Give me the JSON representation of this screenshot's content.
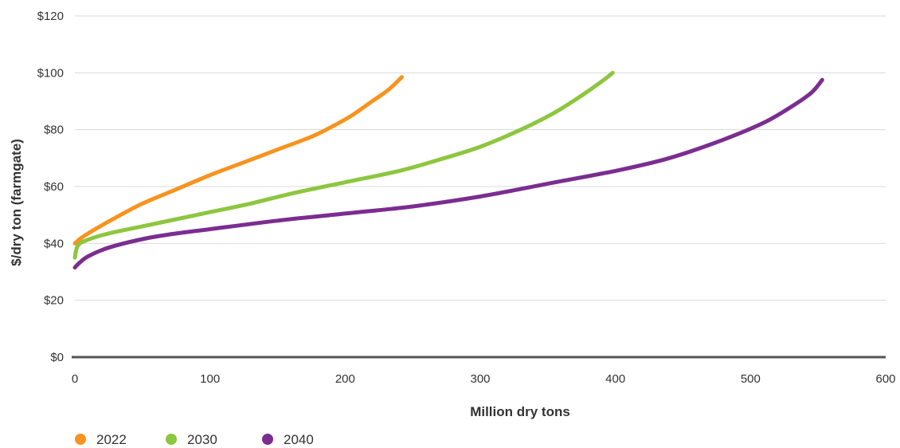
{
  "chart_data": {
    "type": "line",
    "xlabel": "Million dry tons",
    "ylabel": "$/dry ton (farmgate)",
    "xlim": [
      0,
      600
    ],
    "ylim": [
      0,
      120
    ],
    "x_ticks": [
      0,
      100,
      200,
      300,
      400,
      500,
      600
    ],
    "x_tick_labels": [
      "0",
      "100",
      "200",
      "300",
      "400",
      "500",
      "600"
    ],
    "y_ticks": [
      0,
      20,
      40,
      60,
      80,
      100,
      120
    ],
    "y_tick_labels": [
      "$0",
      "$20",
      "$40",
      "$60",
      "$80",
      "$100",
      "$120"
    ],
    "grid": "horizontal",
    "legend_position": "bottom-left",
    "series": [
      {
        "name": "2022",
        "color": "#F7931E",
        "points": [
          [
            0,
            40
          ],
          [
            5,
            42
          ],
          [
            15,
            45
          ],
          [
            30,
            49
          ],
          [
            50,
            54
          ],
          [
            75,
            59
          ],
          [
            100,
            64
          ],
          [
            125,
            68.5
          ],
          [
            150,
            73
          ],
          [
            175,
            77.5
          ],
          [
            190,
            81
          ],
          [
            205,
            85
          ],
          [
            220,
            90
          ],
          [
            232,
            94
          ],
          [
            242,
            98.5
          ]
        ]
      },
      {
        "name": "2030",
        "color": "#8DC63F",
        "points": [
          [
            0,
            35
          ],
          [
            2,
            39
          ],
          [
            8,
            41
          ],
          [
            25,
            43.5
          ],
          [
            50,
            46
          ],
          [
            75,
            48.5
          ],
          [
            100,
            51
          ],
          [
            130,
            54
          ],
          [
            160,
            57.5
          ],
          [
            200,
            61.5
          ],
          [
            240,
            65.5
          ],
          [
            270,
            69.5
          ],
          [
            300,
            74
          ],
          [
            330,
            80
          ],
          [
            355,
            86
          ],
          [
            375,
            92
          ],
          [
            390,
            97
          ],
          [
            398,
            100
          ]
        ]
      },
      {
        "name": "2040",
        "color": "#7B2D90",
        "points": [
          [
            0,
            31.5
          ],
          [
            3,
            33
          ],
          [
            10,
            35.5
          ],
          [
            25,
            38.5
          ],
          [
            50,
            41.5
          ],
          [
            75,
            43.5
          ],
          [
            100,
            45
          ],
          [
            150,
            48
          ],
          [
            200,
            50.5
          ],
          [
            250,
            53
          ],
          [
            300,
            56.5
          ],
          [
            350,
            61
          ],
          [
            400,
            65.5
          ],
          [
            440,
            70
          ],
          [
            480,
            76.5
          ],
          [
            510,
            82.5
          ],
          [
            530,
            88
          ],
          [
            545,
            93
          ],
          [
            553,
            97.5
          ]
        ]
      }
    ]
  }
}
